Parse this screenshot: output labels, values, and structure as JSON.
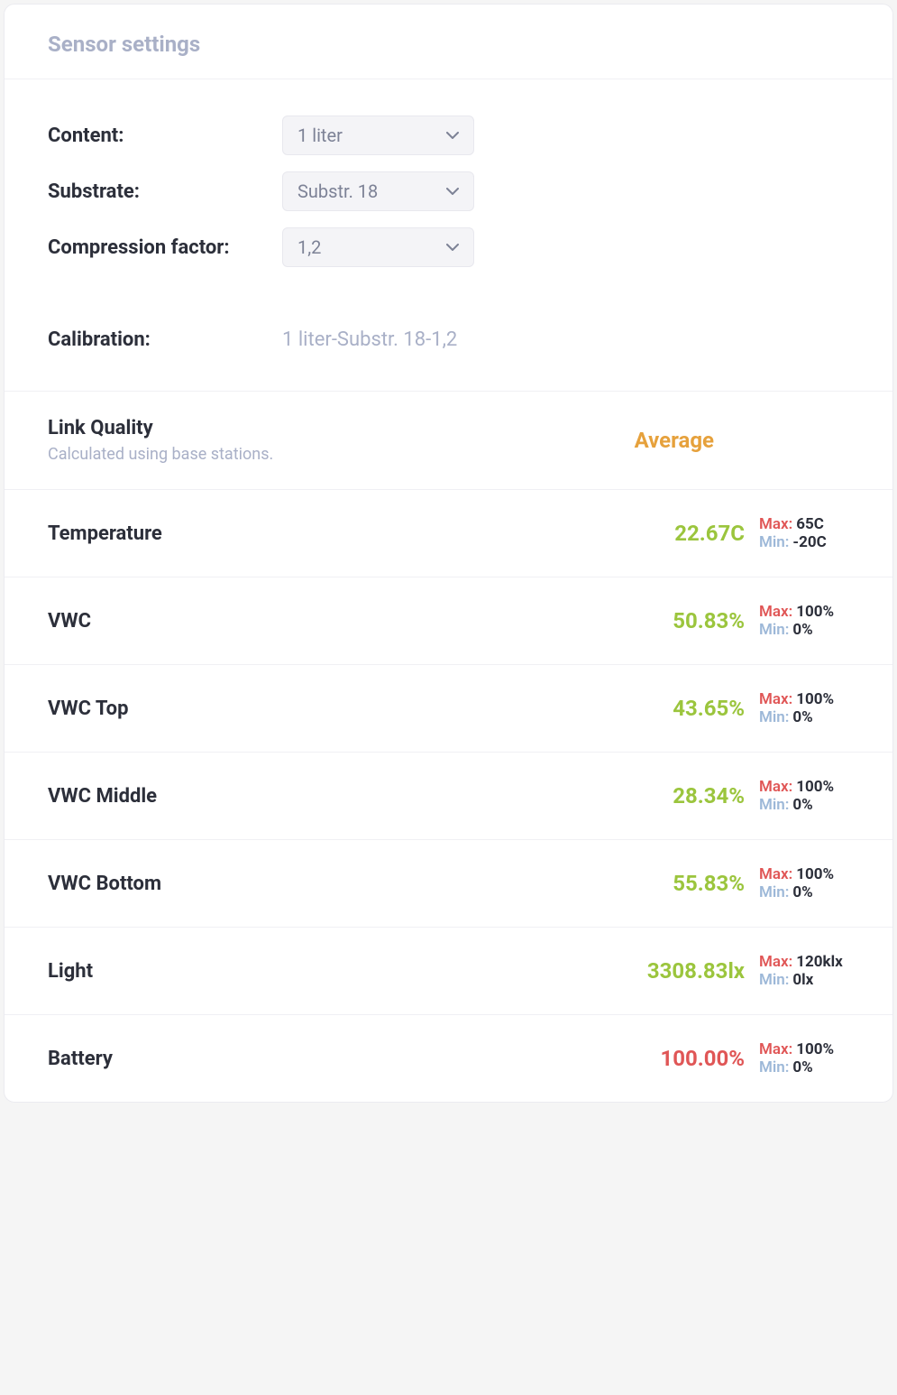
{
  "header": {
    "title": "Sensor settings"
  },
  "settings": {
    "content": {
      "label": "Content:",
      "value": "1 liter"
    },
    "substrate": {
      "label": "Substrate:",
      "value": "Substr. 18"
    },
    "compression": {
      "label": "Compression factor:",
      "value": "1,2"
    },
    "calibration": {
      "label": "Calibration:",
      "value": "1 liter-Substr. 18-1,2"
    }
  },
  "linkQuality": {
    "title": "Link Quality",
    "subtitle": "Calculated using base stations.",
    "value": "Average",
    "value_color": "#e6a13c"
  },
  "metrics": [
    {
      "title": "Temperature",
      "value": "22.67C",
      "value_color": "#9bc53d",
      "max_label": "Max:",
      "max_value": "65C",
      "min_label": "Min:",
      "min_value": "-20C"
    },
    {
      "title": "VWC",
      "value": "50.83%",
      "value_color": "#9bc53d",
      "max_label": "Max:",
      "max_value": "100%",
      "min_label": "Min:",
      "min_value": "0%"
    },
    {
      "title": "VWC Top",
      "value": "43.65%",
      "value_color": "#9bc53d",
      "max_label": "Max:",
      "max_value": "100%",
      "min_label": "Min:",
      "min_value": "0%"
    },
    {
      "title": "VWC Middle",
      "value": "28.34%",
      "value_color": "#9bc53d",
      "max_label": "Max:",
      "max_value": "100%",
      "min_label": "Min:",
      "min_value": "0%"
    },
    {
      "title": "VWC Bottom",
      "value": "55.83%",
      "value_color": "#9bc53d",
      "max_label": "Max:",
      "max_value": "100%",
      "min_label": "Min:",
      "min_value": "0%"
    },
    {
      "title": "Light",
      "value": "3308.83lx",
      "value_color": "#9bc53d",
      "max_label": "Max:",
      "max_value": "120klx",
      "min_label": "Min:",
      "min_value": "0lx"
    },
    {
      "title": "Battery",
      "value": "100.00%",
      "value_color": "#e05656",
      "max_label": "Max:",
      "max_value": "100%",
      "min_label": "Min:",
      "min_value": "0%"
    }
  ],
  "colors": {
    "title_muted": "#a9b0c7",
    "text_primary": "#2c2f3a",
    "select_bg": "#f4f4f7",
    "select_text": "#7d8296",
    "border": "#f0f0f4",
    "green": "#9bc53d",
    "orange": "#e6a13c",
    "red": "#e05656",
    "min_label": "#9db8d8"
  }
}
